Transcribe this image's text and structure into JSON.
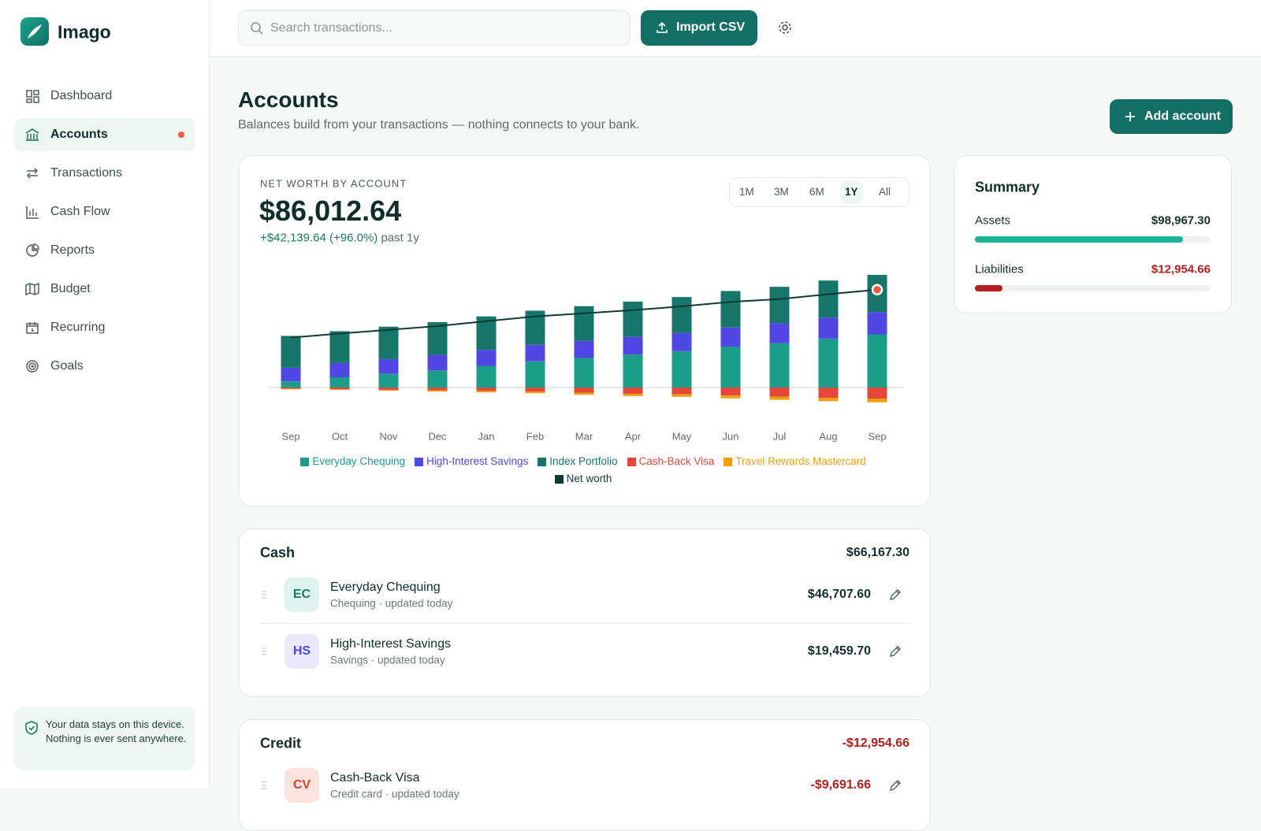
{
  "brand": "Imago",
  "nav": [
    {
      "label": "Dashboard"
    },
    {
      "label": "Accounts",
      "active": true,
      "badge": true
    },
    {
      "label": "Transactions"
    },
    {
      "label": "Cash Flow"
    },
    {
      "label": "Reports"
    },
    {
      "label": "Budget"
    },
    {
      "label": "Recurring"
    },
    {
      "label": "Goals"
    }
  ],
  "privacy_note": "Your data stays on this device. Nothing is ever sent anywhere.",
  "search_placeholder": "Search transactions...",
  "import_button": "Import CSV",
  "page": {
    "title": "Accounts",
    "subtitle": "Balances build from your transactions — nothing connects to your bank.",
    "add_button": "Add account"
  },
  "chart_data": {
    "type": "bar",
    "stacked": true,
    "label": "NET WORTH BY ACCOUNT",
    "total_label": "$86,012.64",
    "change": "+$42,139.64 (+96.0%)",
    "change_period": "past 1y",
    "ranges": [
      "1M",
      "3M",
      "6M",
      "1Y",
      "All"
    ],
    "active_range": "1Y",
    "categories": [
      "Sep",
      "Oct",
      "Nov",
      "Dec",
      "Jan",
      "Feb",
      "Mar",
      "Apr",
      "May",
      "Jun",
      "Jul",
      "Aug",
      "Sep"
    ],
    "series": [
      {
        "name": "Everyday Chequing",
        "color": "#1b9e89",
        "values": [
          5373,
          9000,
          12000,
          15000,
          19000,
          23000,
          26000,
          29000,
          32000,
          36000,
          39000,
          43000,
          46707.6
        ]
      },
      {
        "name": "High-Interest Savings",
        "color": "#5046e4",
        "values": [
          12000,
          12500,
          13000,
          13500,
          14000,
          14500,
          15000,
          15500,
          16000,
          16800,
          17500,
          18500,
          19459.7
        ]
      },
      {
        "name": "Index Portfolio",
        "color": "#17766a",
        "values": [
          28000,
          28000,
          28500,
          29000,
          29500,
          30000,
          30500,
          31000,
          31500,
          32000,
          32000,
          32500,
          32800
        ]
      },
      {
        "name": "Cash-Back Visa",
        "color": "#e5483b",
        "values": [
          -1000,
          -1500,
          -2000,
          -2500,
          -3000,
          -3500,
          -4500,
          -5500,
          -6000,
          -7000,
          -8000,
          -9000,
          -9691.66
        ]
      },
      {
        "name": "Travel Rewards Mastercard",
        "color": "#eea10c",
        "values": [
          -500,
          -600,
          -800,
          -1000,
          -1200,
          -1500,
          -1800,
          -2000,
          -2200,
          -2500,
          -2800,
          -3000,
          -3263
        ]
      },
      {
        "name": "Net worth",
        "type": "line",
        "color": "#0f3b33",
        "values": [
          43873,
          47400,
          50700,
          54000,
          58300,
          62500,
          65200,
          68000,
          71300,
          75300,
          77700,
          82000,
          86012.64
        ]
      }
    ]
  },
  "summary": {
    "title": "Summary",
    "assets": "Assets",
    "assets_value": 98967.3,
    "assets_label": "$98,967.30",
    "liabilities": "Liabilities",
    "liabilities_value": 12954.66,
    "liabilities_label": "$12,954.66"
  },
  "groups": [
    {
      "name": "Cash",
      "total": "$66,167.30",
      "negative": false,
      "accounts": [
        {
          "initials": "EC",
          "name": "Everyday Chequing",
          "meta": "Chequing · updated today",
          "balance": "$46,707.60",
          "tone": "teal"
        },
        {
          "initials": "HS",
          "name": "High-Interest Savings",
          "meta": "Savings · updated today",
          "balance": "$19,459.70",
          "tone": "violet"
        }
      ]
    },
    {
      "name": "Credit",
      "total": "-$12,954.66",
      "negative": true,
      "accounts": [
        {
          "initials": "CV",
          "name": "Cash-Back Visa",
          "meta": "Credit card · updated today",
          "balance": "-$9,691.66",
          "tone": "red"
        }
      ]
    }
  ]
}
